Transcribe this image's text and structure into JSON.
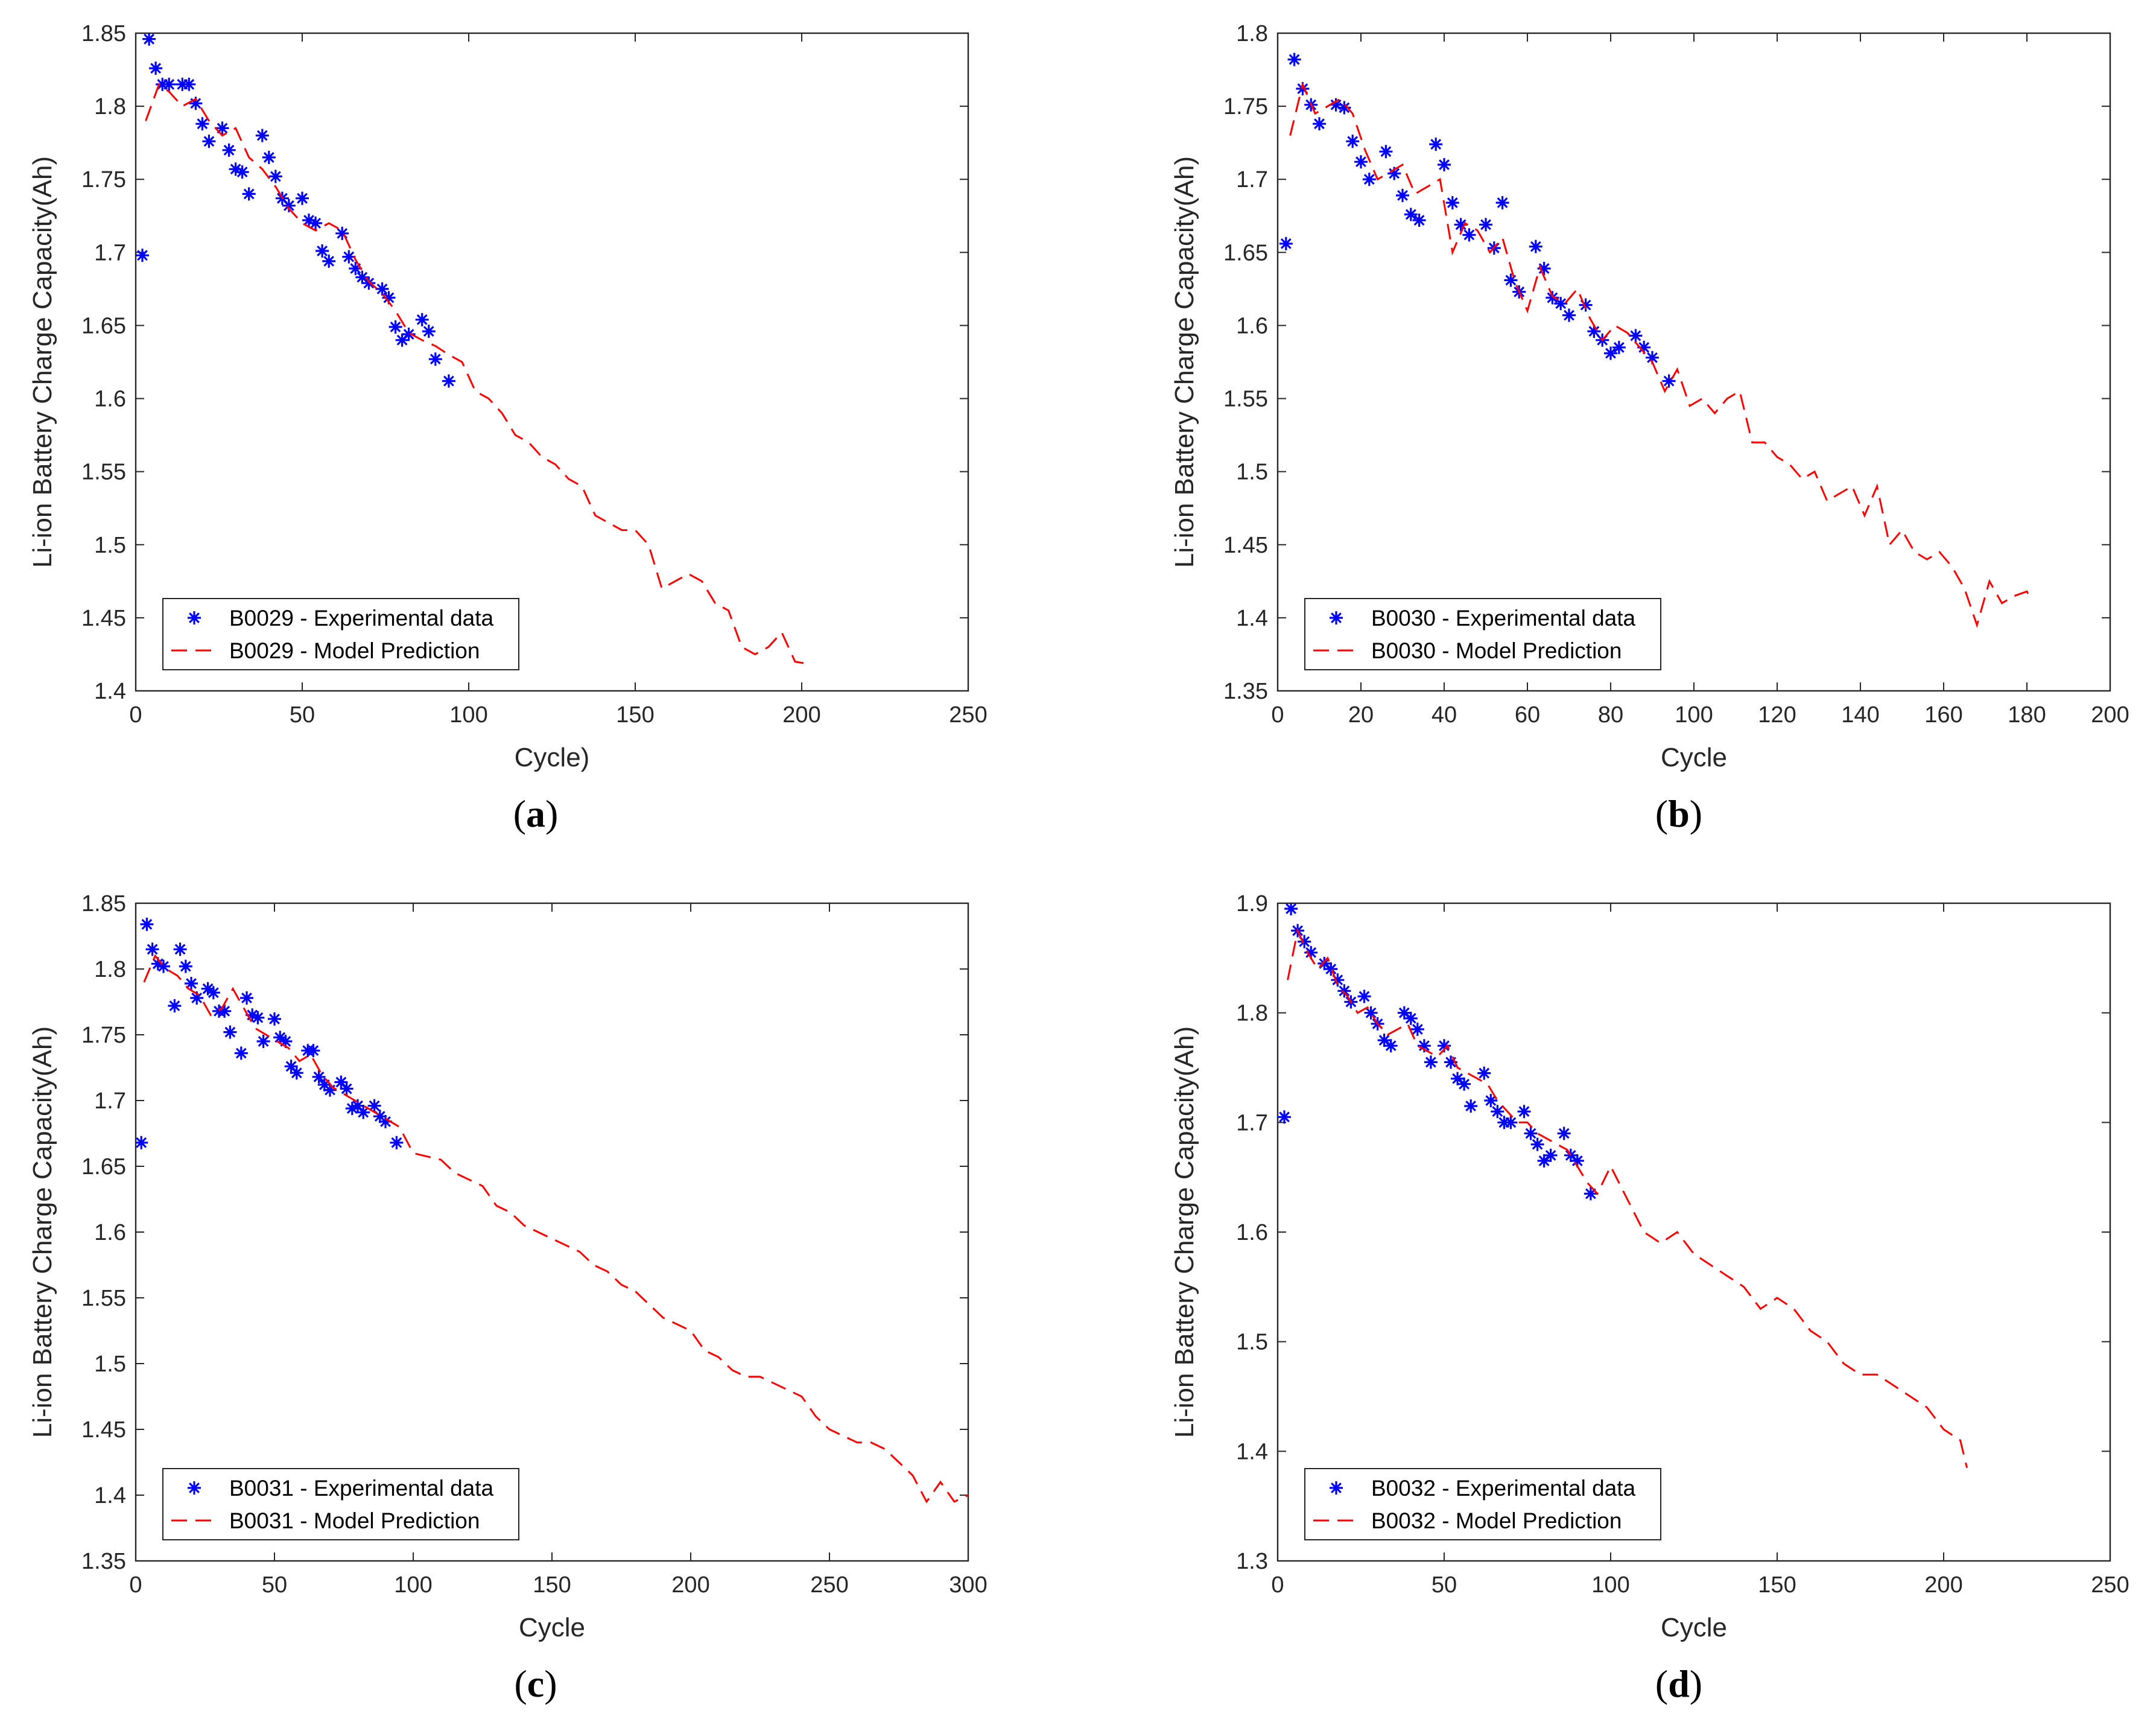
{
  "figure": {
    "series_styles": {
      "experimental": {
        "color": "#0000ff",
        "marker": "asterisk"
      },
      "model": {
        "color": "#ff0000",
        "line": "dashed"
      }
    }
  },
  "chart_data": [
    {
      "type": "line",
      "panel_label": "a",
      "xlabel": "Cycle)",
      "ylabel": "Li-ion Battery Charge Capacity(Ah)",
      "xlim": [
        0,
        250
      ],
      "ylim": [
        1.4,
        1.85
      ],
      "xticks": [
        "0",
        "50",
        "100",
        "150",
        "200",
        "250"
      ],
      "xtick_values": [
        0,
        50,
        100,
        150,
        200,
        250
      ],
      "yticks": [
        "1.4",
        "1.45",
        "1.5",
        "1.55",
        "1.6",
        "1.65",
        "1.7",
        "1.75",
        "1.8",
        "1.85"
      ],
      "ytick_values": [
        1.4,
        1.45,
        1.5,
        1.55,
        1.6,
        1.65,
        1.7,
        1.75,
        1.8,
        1.85
      ],
      "legend_position": "bottom-left",
      "series": [
        {
          "name": "B0029 - Experimental data",
          "style": "experimental",
          "x": [
            2,
            4,
            6,
            8,
            10,
            14,
            16,
            18,
            20,
            22,
            26,
            28,
            30,
            32,
            34,
            38,
            40,
            42,
            44,
            46,
            50,
            52,
            54,
            56,
            58,
            62,
            64,
            66,
            68,
            70,
            74,
            76,
            78,
            80,
            82,
            86,
            88,
            90,
            94
          ],
          "y": [
            1.698,
            1.846,
            1.826,
            1.815,
            1.815,
            1.815,
            1.815,
            1.802,
            1.788,
            1.776,
            1.785,
            1.77,
            1.757,
            1.755,
            1.74,
            1.78,
            1.765,
            1.752,
            1.737,
            1.732,
            1.737,
            1.722,
            1.72,
            1.701,
            1.694,
            1.713,
            1.697,
            1.689,
            1.683,
            1.679,
            1.675,
            1.669,
            1.649,
            1.64,
            1.644,
            1.654,
            1.646,
            1.627,
            1.612
          ]
        },
        {
          "name": "B0029 - Model Prediction",
          "style": "model",
          "x": [
            3,
            7,
            10,
            14,
            18,
            22,
            26,
            30,
            34,
            38,
            42,
            46,
            50,
            54,
            58,
            62,
            66,
            70,
            74,
            78,
            82,
            86,
            90,
            94,
            98,
            102,
            106,
            110,
            114,
            118,
            122,
            126,
            130,
            134,
            138,
            142,
            146,
            150,
            154,
            158,
            162,
            166,
            170,
            174,
            178,
            182,
            186,
            190,
            194,
            198,
            203
          ],
          "y": [
            1.79,
            1.815,
            1.81,
            1.8,
            1.805,
            1.79,
            1.78,
            1.785,
            1.765,
            1.757,
            1.745,
            1.73,
            1.72,
            1.715,
            1.72,
            1.715,
            1.695,
            1.68,
            1.672,
            1.66,
            1.645,
            1.64,
            1.636,
            1.63,
            1.625,
            1.605,
            1.6,
            1.59,
            1.575,
            1.57,
            1.56,
            1.555,
            1.545,
            1.54,
            1.52,
            1.515,
            1.51,
            1.51,
            1.5,
            1.47,
            1.475,
            1.48,
            1.475,
            1.46,
            1.455,
            1.43,
            1.425,
            1.43,
            1.44,
            1.42,
            1.418
          ]
        }
      ]
    },
    {
      "type": "line",
      "panel_label": "b",
      "xlabel": "Cycle",
      "ylabel": "Li-ion Battery Charge Capacity(Ah)",
      "xlim": [
        0,
        200
      ],
      "ylim": [
        1.35,
        1.8
      ],
      "xticks": [
        "0",
        "20",
        "40",
        "60",
        "80",
        "100",
        "120",
        "140",
        "160",
        "180",
        "200"
      ],
      "xtick_values": [
        0,
        20,
        40,
        60,
        80,
        100,
        120,
        140,
        160,
        180,
        200
      ],
      "yticks": [
        "1.35",
        "1.4",
        "1.45",
        "1.5",
        "1.55",
        "1.6",
        "1.65",
        "1.7",
        "1.75",
        "1.8"
      ],
      "ytick_values": [
        1.35,
        1.4,
        1.45,
        1.5,
        1.55,
        1.6,
        1.65,
        1.7,
        1.75,
        1.8
      ],
      "legend_position": "bottom-left",
      "series": [
        {
          "name": "B0030 - Experimental data",
          "style": "experimental",
          "x": [
            2,
            4,
            6,
            8,
            10,
            14,
            16,
            18,
            20,
            22,
            26,
            28,
            30,
            32,
            34,
            38,
            40,
            42,
            44,
            46,
            50,
            52,
            54,
            56,
            58,
            62,
            64,
            66,
            68,
            70,
            74,
            76,
            78,
            80,
            82,
            86,
            88,
            90,
            94
          ],
          "y": [
            1.656,
            1.782,
            1.762,
            1.751,
            1.738,
            1.751,
            1.749,
            1.726,
            1.712,
            1.7,
            1.719,
            1.704,
            1.689,
            1.676,
            1.672,
            1.724,
            1.71,
            1.684,
            1.669,
            1.662,
            1.669,
            1.653,
            1.684,
            1.631,
            1.623,
            1.654,
            1.639,
            1.619,
            1.615,
            1.607,
            1.614,
            1.596,
            1.59,
            1.581,
            1.585,
            1.593,
            1.585,
            1.578,
            1.562
          ]
        },
        {
          "name": "B0030 - Model Prediction",
          "style": "model",
          "x": [
            3,
            6,
            9,
            12,
            15,
            18,
            21,
            24,
            27,
            30,
            33,
            36,
            39,
            42,
            45,
            48,
            51,
            54,
            57,
            60,
            63,
            66,
            69,
            72,
            75,
            78,
            81,
            84,
            87,
            90,
            93,
            96,
            99,
            102,
            105,
            108,
            111,
            114,
            117,
            120,
            123,
            126,
            129,
            132,
            135,
            138,
            141,
            144,
            147,
            150,
            153,
            156,
            159,
            162,
            165,
            168,
            171,
            174,
            177,
            180,
            181
          ],
          "y": [
            1.73,
            1.765,
            1.745,
            1.75,
            1.755,
            1.745,
            1.72,
            1.7,
            1.705,
            1.71,
            1.69,
            1.695,
            1.7,
            1.65,
            1.67,
            1.665,
            1.65,
            1.66,
            1.63,
            1.61,
            1.64,
            1.62,
            1.615,
            1.625,
            1.605,
            1.59,
            1.6,
            1.595,
            1.585,
            1.575,
            1.555,
            1.57,
            1.545,
            1.55,
            1.54,
            1.55,
            1.555,
            1.52,
            1.52,
            1.51,
            1.505,
            1.495,
            1.5,
            1.48,
            1.485,
            1.49,
            1.47,
            1.49,
            1.45,
            1.46,
            1.445,
            1.44,
            1.445,
            1.435,
            1.42,
            1.395,
            1.425,
            1.41,
            1.415,
            1.418,
            1.412
          ]
        }
      ]
    },
    {
      "type": "line",
      "panel_label": "c",
      "xlabel": "Cycle",
      "ylabel": "Li-ion Battery Charge Capacity(Ah)",
      "xlim": [
        0,
        300
      ],
      "ylim": [
        1.35,
        1.85
      ],
      "xticks": [
        "0",
        "50",
        "100",
        "150",
        "200",
        "250",
        "300"
      ],
      "xtick_values": [
        0,
        50,
        100,
        150,
        200,
        250,
        300
      ],
      "yticks": [
        "1.35",
        "1.4",
        "1.45",
        "1.5",
        "1.55",
        "1.6",
        "1.65",
        "1.7",
        "1.75",
        "1.8",
        "1.85"
      ],
      "ytick_values": [
        1.35,
        1.4,
        1.45,
        1.5,
        1.55,
        1.6,
        1.65,
        1.7,
        1.75,
        1.8,
        1.85
      ],
      "legend_position": "bottom-left",
      "series": [
        {
          "name": "B0031 - Experimental data",
          "style": "experimental",
          "x": [
            2,
            4,
            6,
            8,
            10,
            14,
            16,
            18,
            20,
            22,
            26,
            28,
            30,
            32,
            34,
            38,
            40,
            42,
            44,
            46,
            50,
            52,
            54,
            56,
            58,
            62,
            64,
            66,
            68,
            70,
            74,
            76,
            78,
            80,
            82,
            86,
            88,
            90,
            94
          ],
          "y": [
            1.668,
            1.834,
            1.815,
            1.804,
            1.802,
            1.772,
            1.815,
            1.802,
            1.789,
            1.778,
            1.785,
            1.782,
            1.768,
            1.768,
            1.752,
            1.736,
            1.778,
            1.765,
            1.763,
            1.745,
            1.762,
            1.748,
            1.745,
            1.726,
            1.721,
            1.738,
            1.738,
            1.718,
            1.712,
            1.708,
            1.714,
            1.709,
            1.694,
            1.696,
            1.691,
            1.696,
            1.688,
            1.684,
            1.668
          ]
        },
        {
          "name": "B0031 - Model Prediction",
          "style": "model",
          "x": [
            3,
            7,
            11,
            15,
            19,
            23,
            27,
            31,
            35,
            39,
            43,
            47,
            51,
            55,
            59,
            63,
            67,
            71,
            75,
            79,
            83,
            87,
            91,
            95,
            100,
            110,
            115,
            120,
            125,
            130,
            135,
            140,
            145,
            150,
            155,
            160,
            165,
            170,
            175,
            180,
            185,
            190,
            195,
            200,
            205,
            210,
            215,
            220,
            225,
            230,
            235,
            240,
            245,
            250,
            255,
            260,
            265,
            270,
            275,
            280,
            285,
            290,
            295,
            300
          ],
          "y": [
            1.79,
            1.81,
            1.8,
            1.795,
            1.785,
            1.78,
            1.765,
            1.77,
            1.785,
            1.77,
            1.755,
            1.75,
            1.745,
            1.74,
            1.73,
            1.735,
            1.72,
            1.71,
            1.705,
            1.7,
            1.695,
            1.69,
            1.685,
            1.68,
            1.66,
            1.655,
            1.645,
            1.64,
            1.635,
            1.62,
            1.615,
            1.605,
            1.6,
            1.595,
            1.59,
            1.585,
            1.575,
            1.57,
            1.56,
            1.555,
            1.545,
            1.535,
            1.53,
            1.525,
            1.51,
            1.505,
            1.495,
            1.49,
            1.49,
            1.485,
            1.48,
            1.475,
            1.46,
            1.45,
            1.445,
            1.44,
            1.44,
            1.435,
            1.425,
            1.415,
            1.395,
            1.41,
            1.395,
            1.4
          ]
        }
      ]
    },
    {
      "type": "line",
      "panel_label": "d",
      "xlabel": "Cycle",
      "ylabel": "Li-ion Battery Charge Capacity(Ah)",
      "xlim": [
        0,
        250
      ],
      "ylim": [
        1.3,
        1.9
      ],
      "xticks": [
        "0",
        "50",
        "100",
        "150",
        "200",
        "250"
      ],
      "xtick_values": [
        0,
        50,
        100,
        150,
        200,
        250
      ],
      "yticks": [
        "1.3",
        "1.4",
        "1.5",
        "1.6",
        "1.7",
        "1.8",
        "1.9"
      ],
      "ytick_values": [
        1.3,
        1.4,
        1.5,
        1.6,
        1.7,
        1.8,
        1.9
      ],
      "legend_position": "bottom-left",
      "series": [
        {
          "name": "B0032 - Experimental data",
          "style": "experimental",
          "x": [
            2,
            4,
            6,
            8,
            10,
            14,
            16,
            18,
            20,
            22,
            26,
            28,
            30,
            32,
            34,
            38,
            40,
            42,
            44,
            46,
            50,
            52,
            54,
            56,
            58,
            62,
            64,
            66,
            68,
            70,
            74,
            76,
            78,
            80,
            82,
            86,
            88,
            90,
            94
          ],
          "y": [
            1.705,
            1.895,
            1.875,
            1.865,
            1.855,
            1.845,
            1.84,
            1.83,
            1.82,
            1.81,
            1.815,
            1.8,
            1.79,
            1.775,
            1.77,
            1.8,
            1.795,
            1.785,
            1.77,
            1.755,
            1.77,
            1.755,
            1.74,
            1.735,
            1.715,
            1.745,
            1.72,
            1.71,
            1.7,
            1.7,
            1.71,
            1.69,
            1.68,
            1.665,
            1.67,
            1.69,
            1.67,
            1.665,
            1.635
          ]
        },
        {
          "name": "B0032 - Model Prediction",
          "style": "model",
          "x": [
            3,
            6,
            9,
            12,
            15,
            18,
            21,
            24,
            27,
            30,
            33,
            36,
            39,
            42,
            45,
            48,
            51,
            54,
            57,
            60,
            63,
            66,
            69,
            72,
            75,
            78,
            81,
            84,
            87,
            90,
            93,
            96,
            100,
            105,
            110,
            115,
            120,
            125,
            130,
            135,
            140,
            145,
            150,
            155,
            160,
            165,
            170,
            175,
            180,
            185,
            190,
            195,
            200,
            205,
            207
          ],
          "y": [
            1.83,
            1.875,
            1.855,
            1.84,
            1.85,
            1.825,
            1.815,
            1.8,
            1.805,
            1.79,
            1.78,
            1.785,
            1.79,
            1.77,
            1.765,
            1.76,
            1.77,
            1.75,
            1.745,
            1.74,
            1.735,
            1.72,
            1.71,
            1.7,
            1.7,
            1.69,
            1.685,
            1.68,
            1.675,
            1.66,
            1.645,
            1.635,
            1.66,
            1.63,
            1.6,
            1.59,
            1.6,
            1.58,
            1.57,
            1.56,
            1.55,
            1.53,
            1.54,
            1.53,
            1.51,
            1.5,
            1.48,
            1.47,
            1.47,
            1.46,
            1.45,
            1.44,
            1.42,
            1.41,
            1.385
          ]
        }
      ]
    }
  ]
}
